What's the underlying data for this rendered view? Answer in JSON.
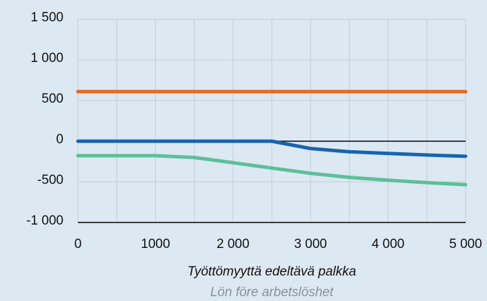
{
  "chart_data": {
    "type": "line",
    "x": [
      0,
      500,
      1000,
      1500,
      2000,
      2500,
      3000,
      3500,
      4000,
      4500,
      5000
    ],
    "series": [
      {
        "color": "#e8661c",
        "values": [
          610,
          610,
          610,
          610,
          610,
          610,
          610,
          610,
          610,
          610,
          610
        ]
      },
      {
        "color": "#1864ae",
        "values": [
          0,
          0,
          0,
          0,
          0,
          0,
          -90,
          -130,
          -150,
          -170,
          -185
        ]
      },
      {
        "color": "#5dbf98",
        "values": [
          -178,
          -178,
          -178,
          -200,
          -265,
          -330,
          -395,
          -445,
          -480,
          -510,
          -535
        ]
      }
    ],
    "xlim": [
      0,
      5000
    ],
    "xticks": [
      0,
      {
        "value": 1000,
        "label": "1000"
      },
      {
        "value": 2000,
        "label": "2 000"
      },
      {
        "value": 3000,
        "label": "3 000"
      },
      {
        "value": 4000,
        "label": "4 000"
      },
      {
        "value": 5000,
        "label": "5 000"
      }
    ],
    "x_minor_ticks": [
      500,
      1500,
      2500,
      3500,
      4500
    ],
    "ylim": [
      -1000,
      1500
    ],
    "yticks": [
      {
        "value": 1500,
        "label": "1 500"
      },
      {
        "value": 1000,
        "label": "1 000"
      },
      500,
      0,
      -500,
      {
        "value": -1000,
        "label": "-1 000"
      }
    ],
    "grid": true,
    "xlabel": "Työttömyyttä edeltävä palkka",
    "xlabel_secondary": "Lön före arbetslöshet"
  }
}
